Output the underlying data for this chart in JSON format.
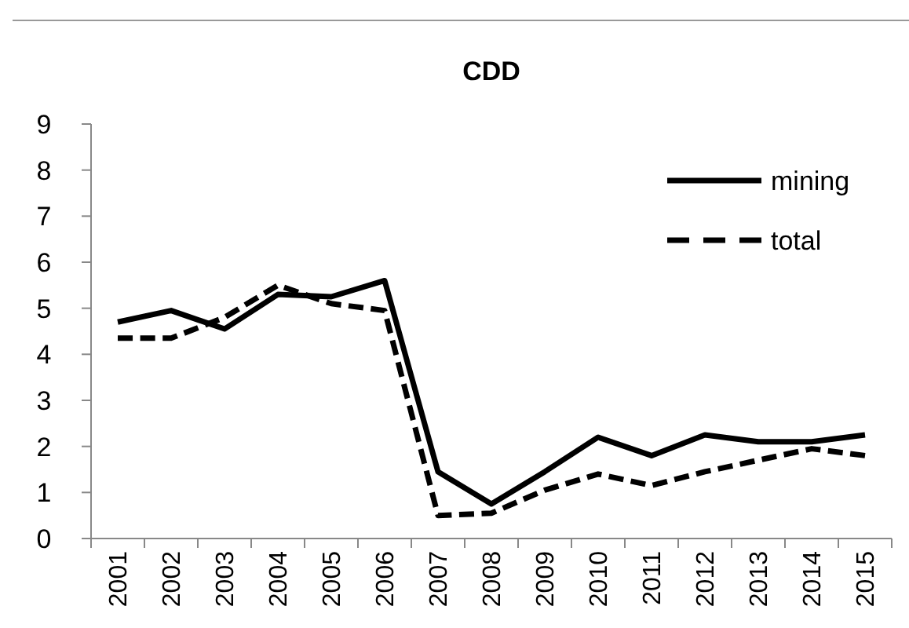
{
  "chart_data": {
    "type": "line",
    "title": "CDD",
    "categories": [
      "2001",
      "2002",
      "2003",
      "2004",
      "2005",
      "2006",
      "2007",
      "2008",
      "2009",
      "2010",
      "2011",
      "2012",
      "2013",
      "2014",
      "2015"
    ],
    "series": [
      {
        "name": "mining",
        "color": "#000000",
        "line_style": "solid",
        "values": [
          4.7,
          4.95,
          4.55,
          5.3,
          5.25,
          5.6,
          1.45,
          0.75,
          1.45,
          2.2,
          1.8,
          2.25,
          2.1,
          2.1,
          2.25
        ]
      },
      {
        "name": "total",
        "color": "#000000",
        "line_style": "dashed",
        "values": [
          4.35,
          4.35,
          4.8,
          5.5,
          5.1,
          4.95,
          0.5,
          0.55,
          1.05,
          1.4,
          1.15,
          1.45,
          1.7,
          1.95,
          1.8
        ]
      }
    ],
    "ylim": [
      0,
      9
    ],
    "yticks": [
      0,
      1,
      2,
      3,
      4,
      5,
      6,
      7,
      8,
      9
    ],
    "legend": "top right",
    "grid": false
  }
}
